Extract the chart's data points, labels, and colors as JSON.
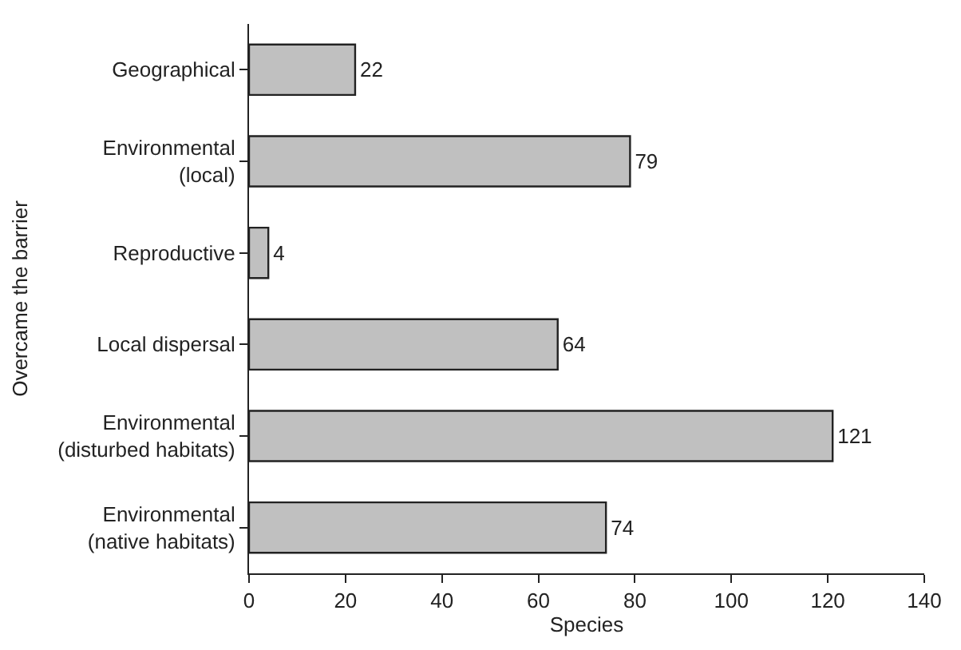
{
  "chart_data": {
    "type": "bar",
    "orientation": "horizontal",
    "xlabel": "Species",
    "ylabel": "Overcame the barrier",
    "categories": [
      "Geographical",
      "Environmental\n(local)",
      "Reproductive",
      "Local dispersal",
      "Environmental\n(disturbed habitats)",
      "Environmental\n(native habitats)"
    ],
    "values": [
      22,
      79,
      4,
      64,
      121,
      74
    ],
    "color": "#c0c0c0",
    "data_labels": true,
    "xlim": [
      0,
      140
    ],
    "xticks": [
      0,
      20,
      40,
      60,
      80,
      100,
      120,
      140
    ]
  }
}
